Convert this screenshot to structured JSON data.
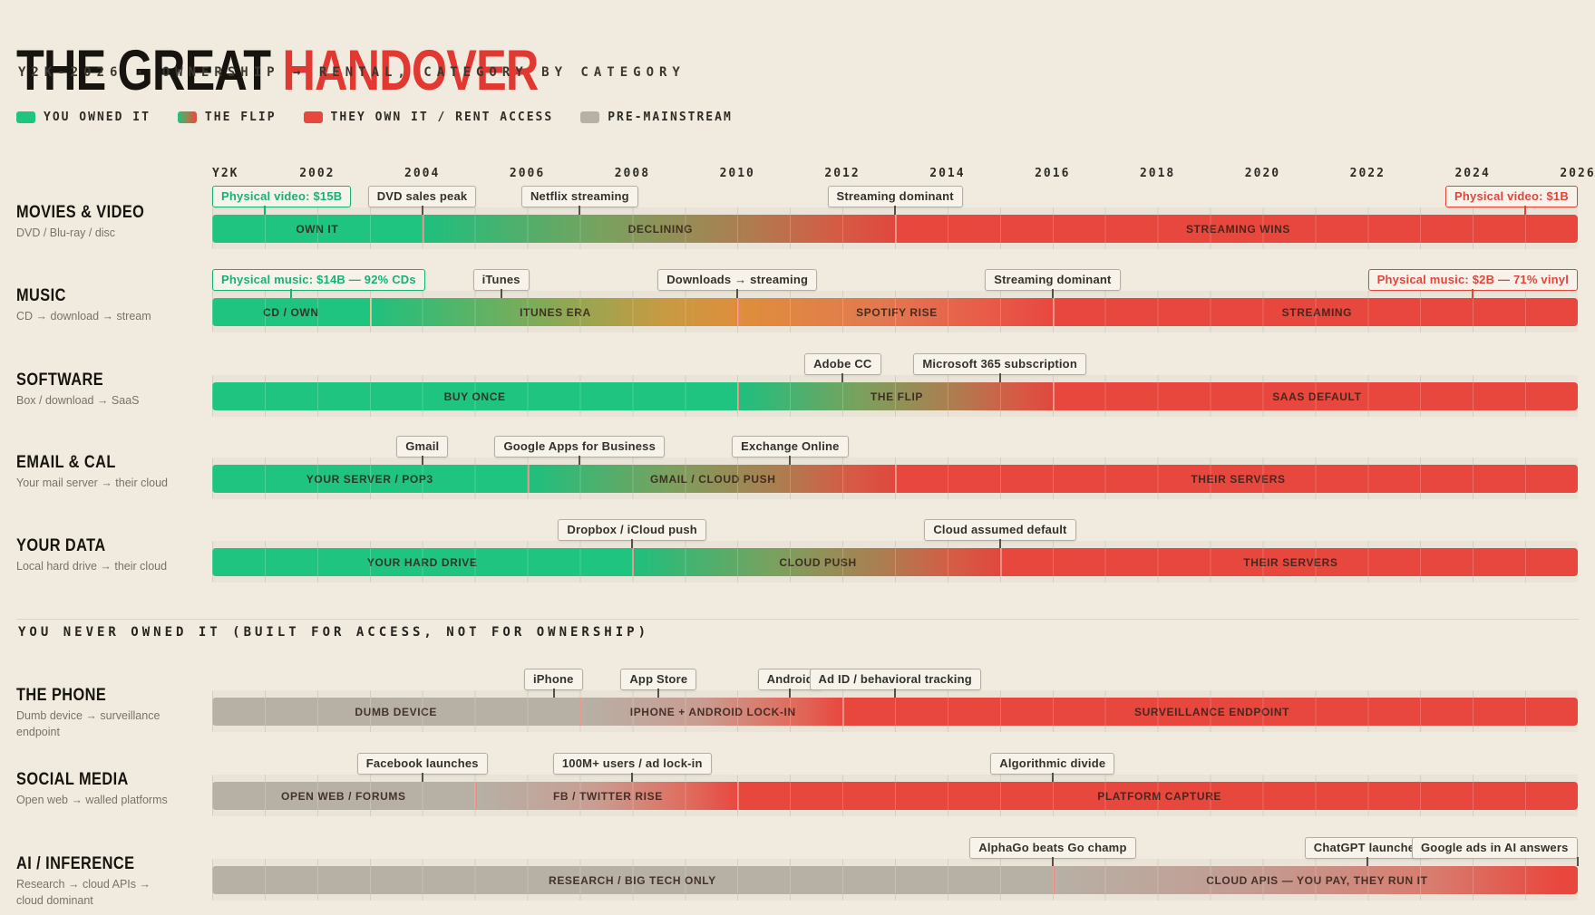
{
  "header": {
    "title_black": "THE GREAT",
    "title_red": "HANDOVER",
    "subtitle": "Y2K-2026 · OWNERSHIP → RENTAL, CATEGORY BY CATEGORY"
  },
  "legend": {
    "items": [
      {
        "label": "YOU OWNED IT",
        "style": "own"
      },
      {
        "label": "THE FLIP",
        "style": "flip"
      },
      {
        "label": "THEY OWN IT / RENT ACCESS",
        "style": "rent"
      },
      {
        "label": "PRE-MAINSTREAM",
        "style": "pre"
      }
    ]
  },
  "colors": {
    "background": "#f0ebde",
    "owned_green": "#1ec47f",
    "rent_red": "#e8473e",
    "pre_gray": "#b7b0a5",
    "title_red": "#e23832",
    "ink": "#17140f"
  },
  "chart_data": {
    "type": "bar",
    "orientation": "horizontal-timeline",
    "title": "THE GREAT HANDOVER",
    "subtitle": "Y2K-2026 · OWNERSHIP → RENTAL, CATEGORY BY CATEGORY",
    "x_axis": {
      "start": 2000,
      "end": 2026,
      "tick_labels": [
        "Y2K",
        "2002",
        "2004",
        "2006",
        "2008",
        "2010",
        "2012",
        "2014",
        "2016",
        "2018",
        "2020",
        "2022",
        "2024",
        "2026"
      ],
      "tick_years": [
        2000,
        2002,
        2004,
        2006,
        2008,
        2010,
        2012,
        2014,
        2016,
        2018,
        2020,
        2022,
        2024,
        2026
      ]
    },
    "sections": [
      {
        "heading": "",
        "rows": [
          {
            "label": "MOVIES & VIDEO",
            "sublabel": "DVD / Blu-ray / disc",
            "annotations": [
              {
                "text": "Physical video: $15B",
                "year": 2001,
                "style": "own"
              },
              {
                "text": "DVD sales peak",
                "year": 2004,
                "style": "neutral"
              },
              {
                "text": "Netflix streaming",
                "year": 2007,
                "style": "neutral"
              },
              {
                "text": "Streaming dominant",
                "year": 2013,
                "style": "neutral"
              },
              {
                "text": "Physical video: $1B",
                "year": 2025,
                "style": "rent"
              }
            ],
            "segments": [
              {
                "label": "OWN IT",
                "start": 2000,
                "end": 2004,
                "style": "own"
              },
              {
                "label": "DECLINING",
                "start": 2004,
                "end": 2013,
                "style": "flip"
              },
              {
                "label": "STREAMING WINS",
                "start": 2013,
                "end": 2026,
                "style": "rent"
              }
            ]
          },
          {
            "label": "MUSIC",
            "sublabel": "CD → download → stream",
            "annotations": [
              {
                "text": "Physical music: $14B — 92% CDs",
                "year": 2001.5,
                "style": "own"
              },
              {
                "text": "iTunes",
                "year": 2005.5,
                "style": "neutral"
              },
              {
                "text": "Downloads → streaming",
                "year": 2010,
                "style": "neutral"
              },
              {
                "text": "Streaming dominant",
                "year": 2016,
                "style": "neutral"
              },
              {
                "text": "Physical music: $2B — 71% vinyl",
                "year": 2024,
                "style": "rent"
              }
            ],
            "segments": [
              {
                "label": "CD / OWN",
                "start": 2000,
                "end": 2003,
                "style": "own"
              },
              {
                "label": "ITUNES ERA",
                "start": 2003,
                "end": 2010,
                "style": "itunes"
              },
              {
                "label": "SPOTIFY RISE",
                "start": 2010,
                "end": 2016,
                "style": "spotify"
              },
              {
                "label": "STREAMING",
                "start": 2016,
                "end": 2026,
                "style": "rent"
              }
            ]
          },
          {
            "label": "SOFTWARE",
            "sublabel": "Box / download → SaaS",
            "annotations": [
              {
                "text": "Adobe CC",
                "year": 2012,
                "style": "neutral"
              },
              {
                "text": "Microsoft 365 subscription",
                "year": 2015,
                "style": "neutral"
              }
            ],
            "segments": [
              {
                "label": "BUY ONCE",
                "start": 2000,
                "end": 2010,
                "style": "own"
              },
              {
                "label": "THE FLIP",
                "start": 2010,
                "end": 2016,
                "style": "flip"
              },
              {
                "label": "SAAS DEFAULT",
                "start": 2016,
                "end": 2026,
                "style": "rent"
              }
            ]
          },
          {
            "label": "EMAIL & CAL",
            "sublabel": "Your mail server → their cloud",
            "annotations": [
              {
                "text": "Gmail",
                "year": 2004,
                "style": "neutral"
              },
              {
                "text": "Google Apps for Business",
                "year": 2007,
                "style": "neutral"
              },
              {
                "text": "Exchange Online",
                "year": 2011,
                "style": "neutral"
              }
            ],
            "segments": [
              {
                "label": "YOUR SERVER / POP3",
                "start": 2000,
                "end": 2006,
                "style": "own"
              },
              {
                "label": "GMAIL / CLOUD PUSH",
                "start": 2006,
                "end": 2013,
                "style": "flip"
              },
              {
                "label": "THEIR SERVERS",
                "start": 2013,
                "end": 2026,
                "style": "rent"
              }
            ]
          },
          {
            "label": "YOUR DATA",
            "sublabel": "Local hard drive → their cloud",
            "annotations": [
              {
                "text": "Dropbox / iCloud push",
                "year": 2008,
                "style": "neutral"
              },
              {
                "text": "Cloud assumed default",
                "year": 2015,
                "style": "neutral"
              }
            ],
            "segments": [
              {
                "label": "YOUR HARD DRIVE",
                "start": 2000,
                "end": 2008,
                "style": "own"
              },
              {
                "label": "CLOUD PUSH",
                "start": 2008,
                "end": 2015,
                "style": "flip"
              },
              {
                "label": "THEIR SERVERS",
                "start": 2015,
                "end": 2026,
                "style": "rent"
              }
            ]
          }
        ]
      },
      {
        "heading": "YOU NEVER OWNED IT (BUILT FOR ACCESS, NOT FOR OWNERSHIP)",
        "rows": [
          {
            "label": "THE PHONE",
            "sublabel": "Dumb device → surveillance endpoint",
            "annotations": [
              {
                "text": "iPhone",
                "year": 2006.5,
                "style": "neutral"
              },
              {
                "text": "App Store",
                "year": 2008.5,
                "style": "neutral"
              },
              {
                "text": "Android",
                "year": 2011,
                "style": "neutral"
              },
              {
                "text": "Ad ID / behavioral tracking",
                "year": 2013,
                "style": "neutral"
              }
            ],
            "segments": [
              {
                "label": "DUMB DEVICE",
                "start": 2000,
                "end": 2007,
                "style": "pre"
              },
              {
                "label": "IPHONE + ANDROID LOCK-IN",
                "start": 2007,
                "end": 2012,
                "style": "preflip"
              },
              {
                "label": "SURVEILLANCE ENDPOINT",
                "start": 2012,
                "end": 2026,
                "style": "rent"
              }
            ]
          },
          {
            "label": "SOCIAL MEDIA",
            "sublabel": "Open web → walled platforms",
            "annotations": [
              {
                "text": "Facebook launches",
                "year": 2004,
                "style": "neutral"
              },
              {
                "text": "100M+ users / ad lock-in",
                "year": 2008,
                "style": "neutral"
              },
              {
                "text": "Algorithmic divide",
                "year": 2016,
                "style": "neutral"
              }
            ],
            "segments": [
              {
                "label": "OPEN WEB / FORUMS",
                "start": 2000,
                "end": 2005,
                "style": "pre"
              },
              {
                "label": "FB / TWITTER RISE",
                "start": 2005,
                "end": 2010,
                "style": "preflip"
              },
              {
                "label": "PLATFORM CAPTURE",
                "start": 2010,
                "end": 2026,
                "style": "rent"
              }
            ]
          },
          {
            "label": "AI / INFERENCE",
            "sublabel": "Research → cloud APIs → cloud dominant",
            "annotations": [
              {
                "text": "AlphaGo beats Go champ",
                "year": 2016,
                "style": "neutral"
              },
              {
                "text": "ChatGPT launches",
                "year": 2022,
                "style": "neutral"
              },
              {
                "text": "Google ads in AI answers",
                "year": 2026,
                "style": "neutral"
              }
            ],
            "segments": [
              {
                "label": "RESEARCH / BIG TECH ONLY",
                "start": 2000,
                "end": 2016,
                "style": "pre"
              },
              {
                "label": "CLOUD APIS — YOU PAY, THEY RUN IT",
                "start": 2016,
                "end": 2026,
                "style": "aiflip"
              }
            ]
          }
        ]
      }
    ]
  }
}
